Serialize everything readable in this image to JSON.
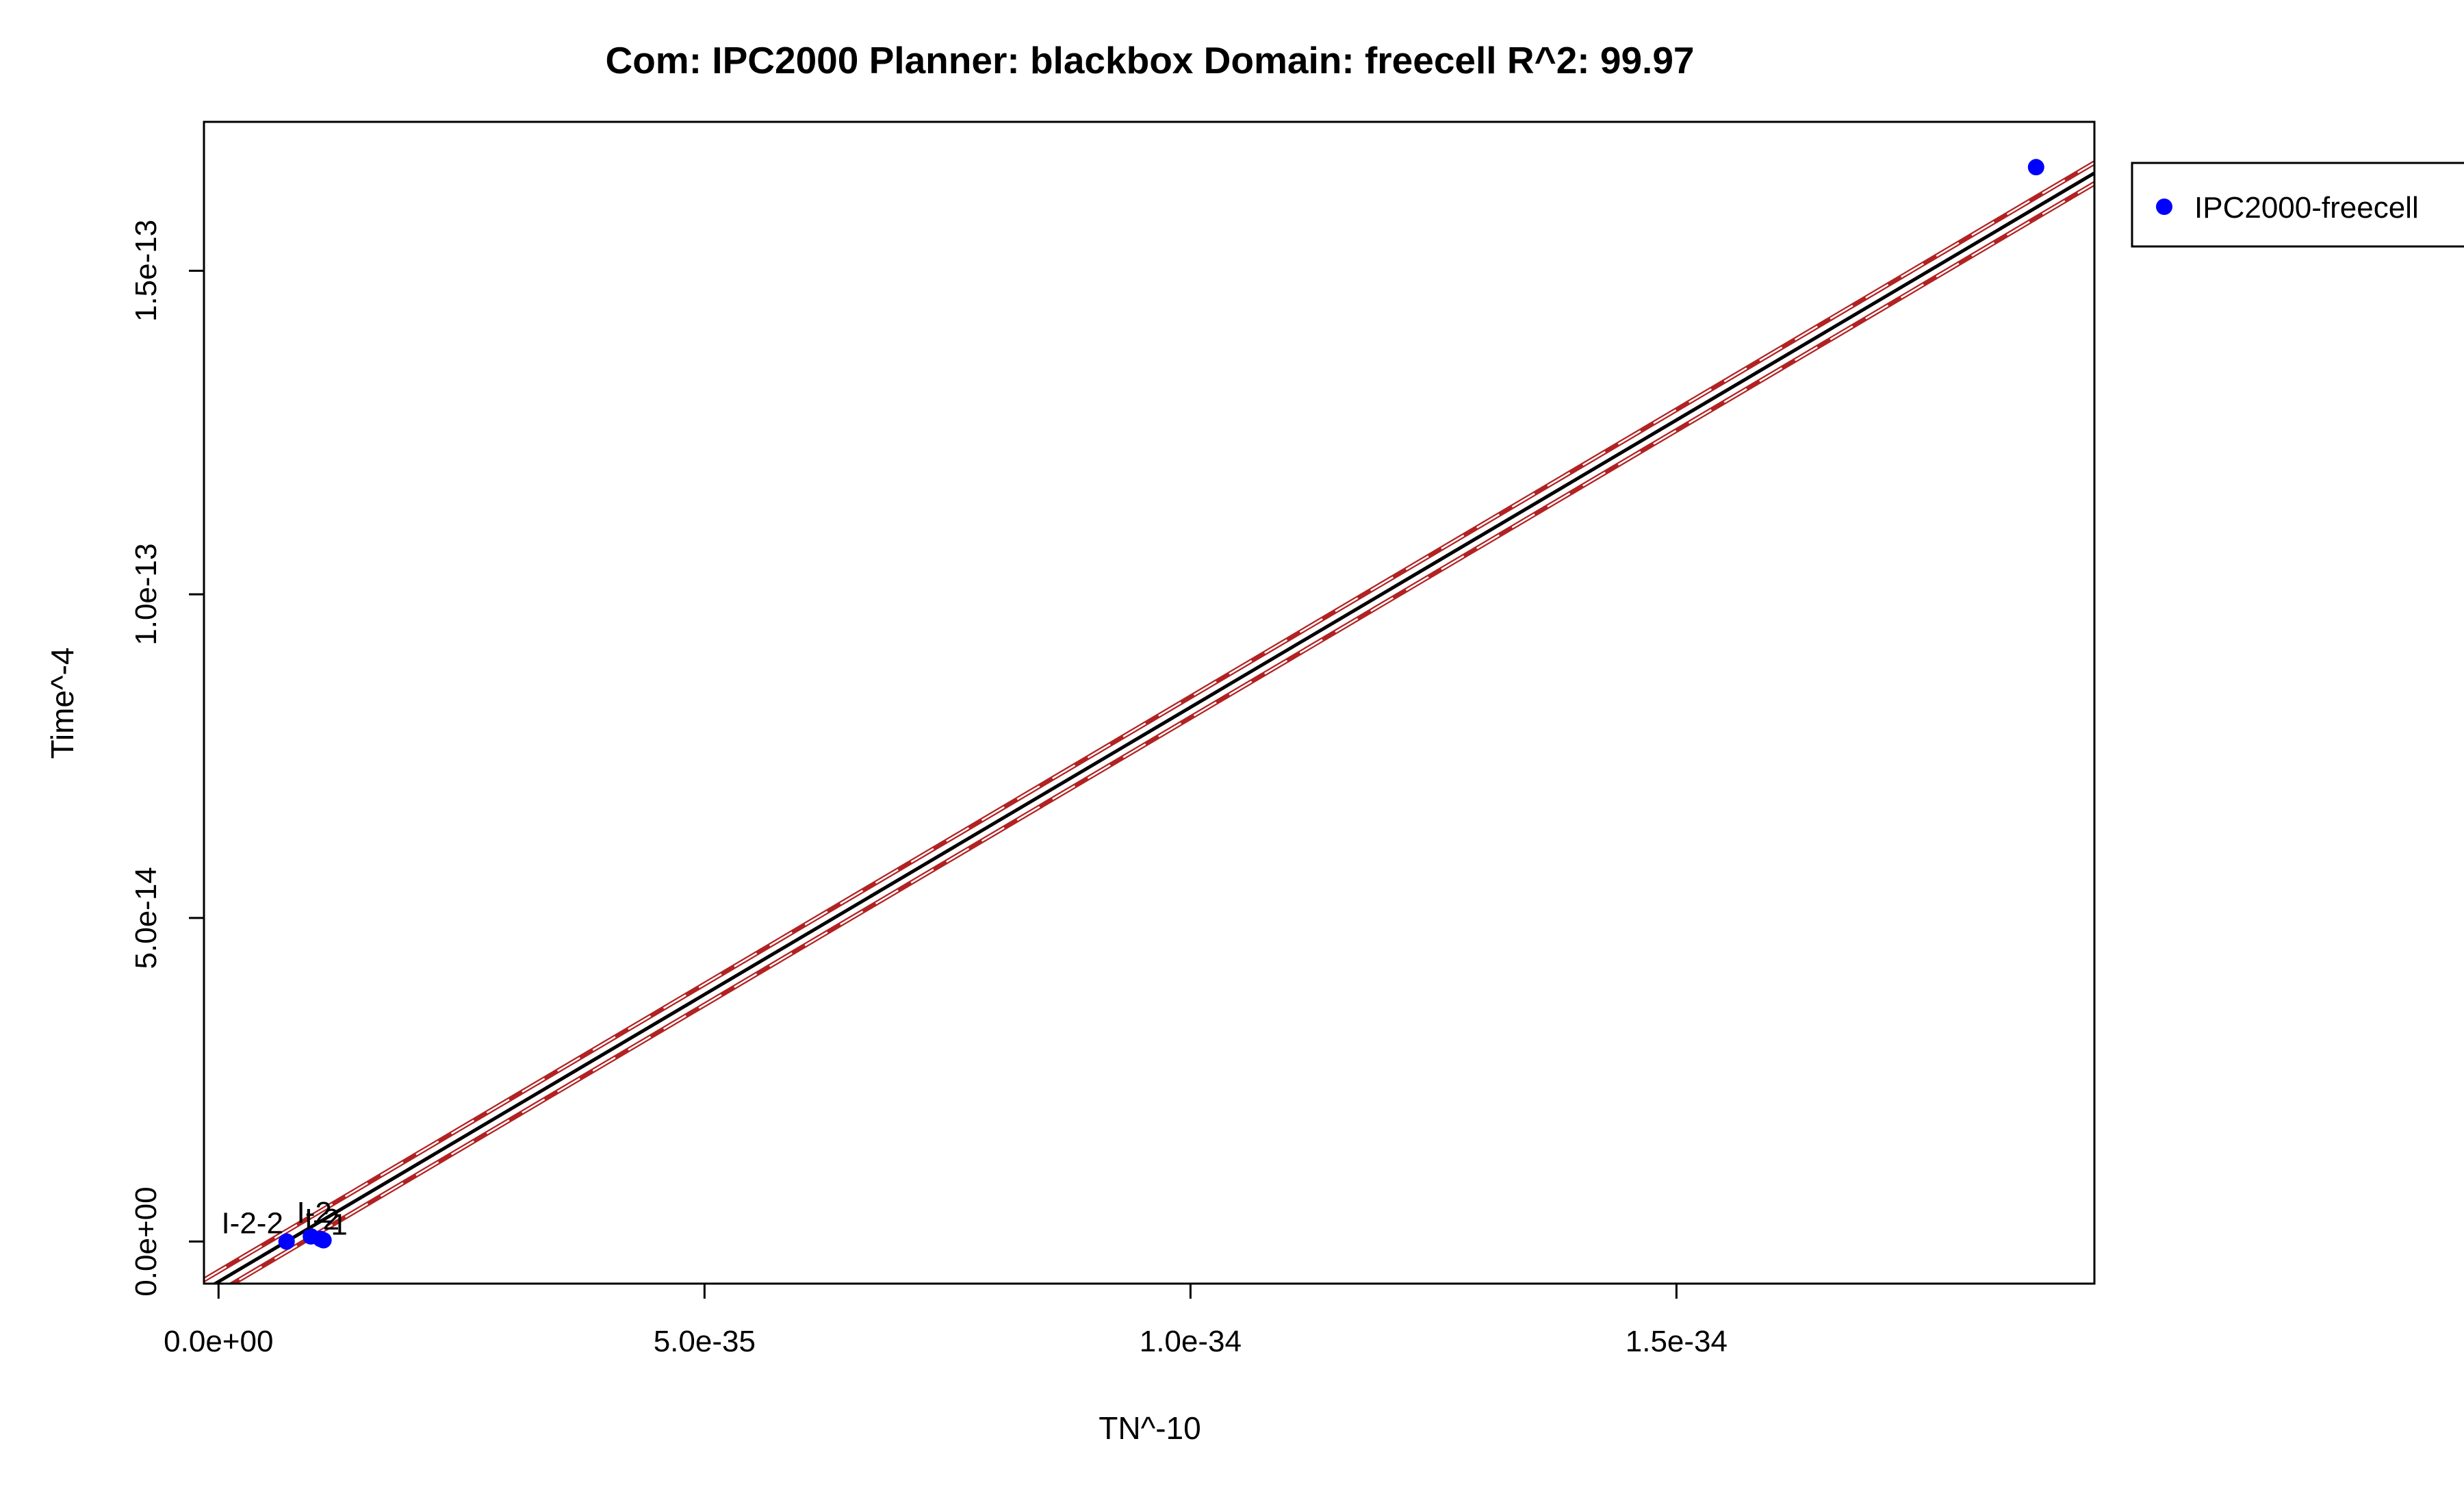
{
  "chart_data": {
    "type": "scatter",
    "title": "Com: IPC2000 Planner: blackbox Domain: freecell R^2: 99.97",
    "xlabel": "TN^-10",
    "ylabel": "Time^-4",
    "xlim": [
      -1.5e-36,
      1.93e-34
    ],
    "ylim": [
      -6.5e-15,
      1.73e-13
    ],
    "x_ticks": [
      0,
      5e-35,
      1e-34,
      1.5e-34
    ],
    "x_tick_labels": [
      "0.0e+00",
      "5.0e-35",
      "1.0e-34",
      "1.5e-34"
    ],
    "y_ticks": [
      0,
      5e-14,
      1e-13,
      1.5e-13
    ],
    "y_tick_labels": [
      "0.0e+00",
      "5.0e-14",
      "1.0e-13",
      "1.5e-13"
    ],
    "series": [
      {
        "name": "IPC2000-freecell",
        "color": "#0000ff",
        "points": [
          {
            "x": 7e-36,
            "y": 0.0,
            "label": "I-2-2"
          },
          {
            "x": 9.5e-36,
            "y": 8e-16,
            "label": "I-2"
          },
          {
            "x": 1.05e-35,
            "y": 4e-16,
            "label": "I-2"
          },
          {
            "x": 1.08e-35,
            "y": 2e-16,
            "label": "1"
          },
          {
            "x": 1.87e-34,
            "y": 1.66e-13,
            "label": ""
          }
        ]
      }
    ],
    "fit_line": {
      "color": "#000000",
      "slope": 8.875e+20,
      "intercept": -6.2e-15
    },
    "interval_lines": [
      {
        "color": "#b22222",
        "slope": 8.875e+20,
        "intercept": -4.6e-15
      },
      {
        "color": "#b22222",
        "slope": 8.875e+20,
        "intercept": -7.8e-15
      }
    ],
    "legend": {
      "position": "outside-top-right",
      "entries": [
        "IPC2000-freecell"
      ]
    },
    "grid": false
  }
}
